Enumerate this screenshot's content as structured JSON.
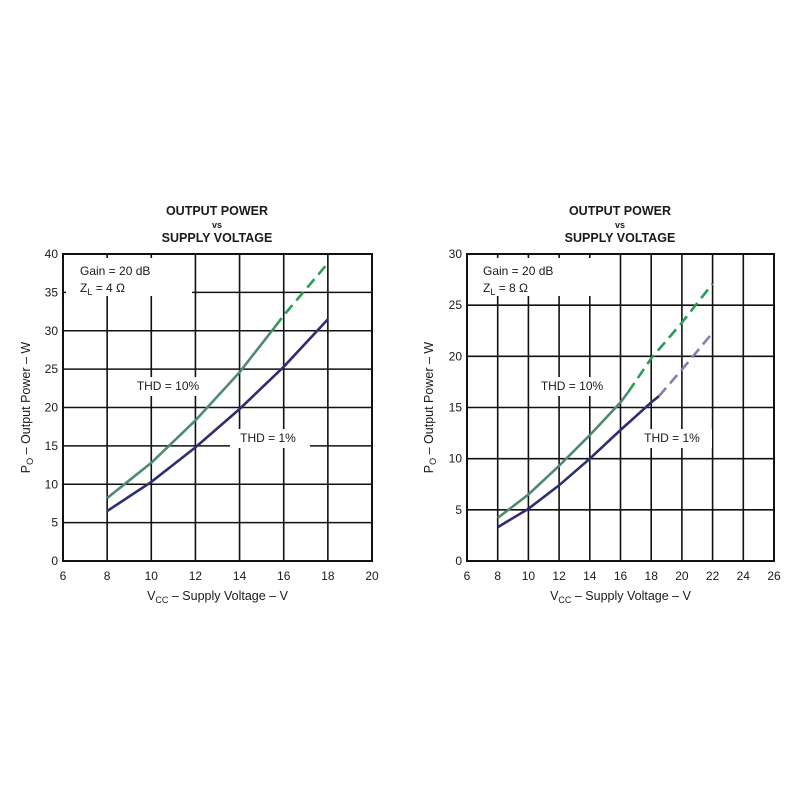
{
  "chart_data": [
    {
      "type": "line",
      "title_lines": [
        "OUTPUT POWER",
        "vs",
        "SUPPLY VOLTAGE"
      ],
      "xlabel": {
        "main": "V",
        "sub": "CC",
        "rest": " – Supply Voltage – V"
      },
      "ylabel": {
        "main": "P",
        "sub": "O",
        "rest": " – Output Power – W"
      },
      "xlim": [
        6,
        20
      ],
      "ylim": [
        0,
        40
      ],
      "xticks": [
        6,
        8,
        10,
        12,
        14,
        16,
        18,
        20
      ],
      "yticks": [
        0,
        5,
        10,
        15,
        20,
        25,
        30,
        35,
        40
      ],
      "grid": true,
      "conditions": {
        "gain": "Gain = 20 dB",
        "load_main": "Z",
        "load_sub": "L",
        "load_rest": " = 4 Ω"
      },
      "series": [
        {
          "name": "THD = 10%",
          "color": "#4f8a6e",
          "dash_color": "#2e9a58",
          "dashed_from_x": 15.6,
          "x": [
            8,
            10,
            12,
            14,
            15.6,
            16,
            18
          ],
          "y": [
            8.2,
            12.8,
            18.3,
            24.6,
            30.5,
            32.0,
            38.8
          ]
        },
        {
          "name": "THD = 1%",
          "color": "#2f2e6e",
          "dash_color": "#2f2e6e",
          "dashed_from_x": null,
          "x": [
            8,
            10,
            12,
            14,
            16,
            18
          ],
          "y": [
            6.5,
            10.3,
            14.8,
            19.8,
            25.3,
            31.5
          ]
        }
      ]
    },
    {
      "type": "line",
      "title_lines": [
        "OUTPUT POWER",
        "vs",
        "SUPPLY VOLTAGE"
      ],
      "xlabel": {
        "main": "V",
        "sub": "CC",
        "rest": " – Supply Voltage – V"
      },
      "ylabel": {
        "main": "P",
        "sub": "O",
        "rest": " – Output Power – W"
      },
      "xlim": [
        6,
        26
      ],
      "ylim": [
        0,
        30
      ],
      "xticks": [
        6,
        8,
        10,
        12,
        14,
        16,
        18,
        20,
        22,
        24,
        26
      ],
      "yticks": [
        0,
        5,
        10,
        15,
        20,
        25,
        30
      ],
      "grid": true,
      "conditions": {
        "gain": "Gain = 20 dB",
        "load_main": "Z",
        "load_sub": "L",
        "load_rest": " = 8 Ω"
      },
      "series": [
        {
          "name": "THD = 10%",
          "color": "#4f8a6e",
          "dash_color": "#2e9a58",
          "dashed_from_x": 16.5,
          "x": [
            8,
            10,
            12,
            14,
            16,
            16.5,
            18,
            20,
            22
          ],
          "y": [
            4.2,
            6.5,
            9.3,
            12.3,
            15.5,
            16.5,
            19.8,
            23.3,
            27.1
          ]
        },
        {
          "name": "THD = 1%",
          "color": "#2f2e6e",
          "dash_color": "#8a7bb0",
          "dashed_from_x": 18.5,
          "x": [
            8,
            10,
            12,
            14,
            16,
            18,
            18.5,
            20,
            22
          ],
          "y": [
            3.3,
            5.1,
            7.4,
            10.0,
            12.8,
            15.5,
            16.1,
            18.7,
            22.3
          ]
        }
      ]
    }
  ]
}
